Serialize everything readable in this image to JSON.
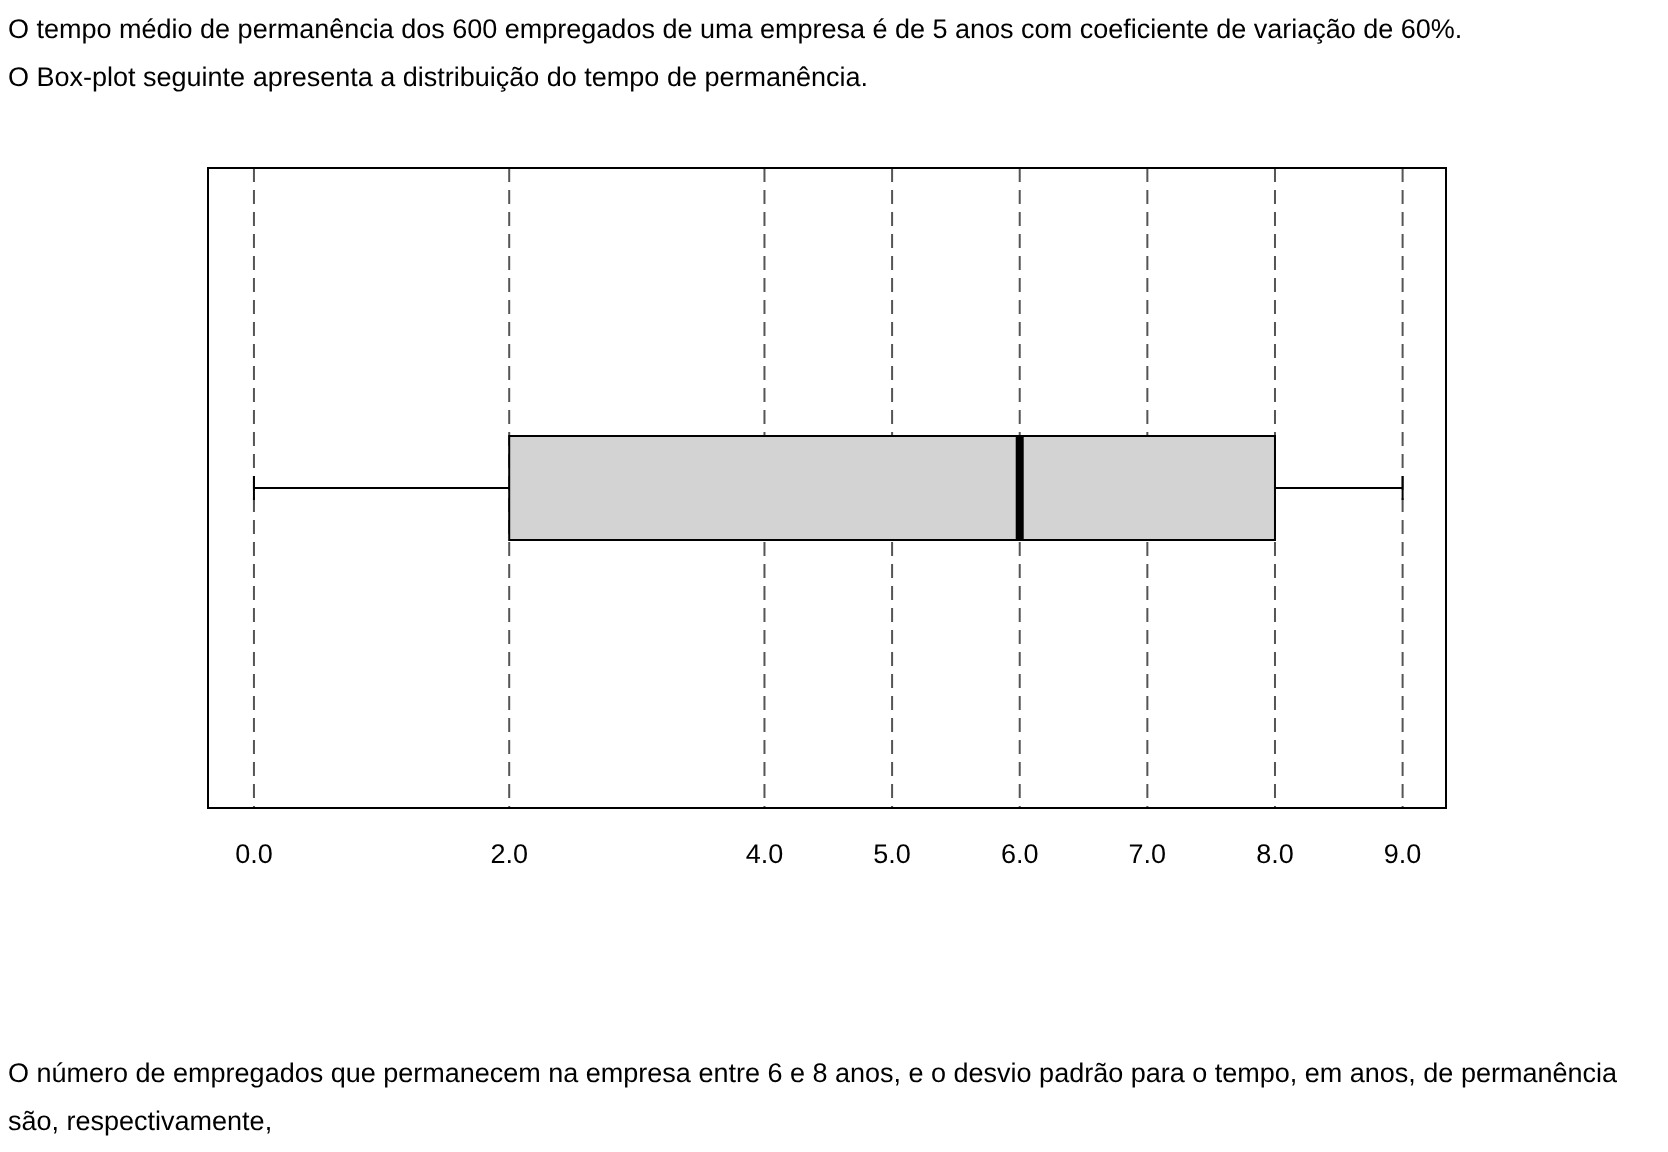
{
  "chart_data": {
    "type": "box",
    "title": "O tempo médio de permanência dos 600 empregados de uma empresa é de 5 anos com coeficiente de variação de 60%.",
    "subtitle": "O Box-plot seguinte apresenta a distribuição do tempo de permanência.",
    "annotations": [
      "O número de empregados que permanecem na empresa entre 6 e 8 anos, e o desvio padrão para o tempo, em anos, de permanência são, respectivamente,"
    ],
    "orientation": "horizontal",
    "categories": [
      null
    ],
    "color": "#d3d3d3",
    "boxes": [
      {
        "low": 0,
        "q1": 2,
        "median": 6,
        "q3": 8,
        "high": 9
      }
    ],
    "xlim": [
      -0.36,
      9.34
    ],
    "xticks": [
      {
        "value": 0,
        "label": "0.0"
      },
      {
        "value": 2,
        "label": "2.0"
      },
      {
        "value": 4,
        "label": "4.0"
      },
      {
        "value": 5,
        "label": "5.0"
      },
      {
        "value": 6,
        "label": "6.0"
      },
      {
        "value": 7,
        "label": "7.0"
      },
      {
        "value": 8,
        "label": "8.0"
      },
      {
        "value": 9,
        "label": "9.0"
      }
    ],
    "grid": "x"
  }
}
